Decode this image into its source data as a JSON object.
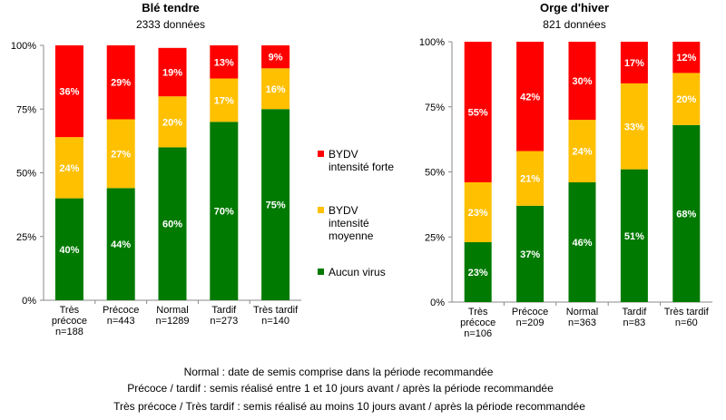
{
  "colors": {
    "forte": "#FF0000",
    "moyenne": "#FFC000",
    "aucun": "#007A00"
  },
  "legend": [
    {
      "key": "forte",
      "lines": [
        "BYDV",
        "intensité forte"
      ]
    },
    {
      "key": "moyenne",
      "lines": [
        "BYDV",
        "intensité",
        "moyenne"
      ]
    },
    {
      "key": "aucun",
      "lines": [
        "Aucun virus"
      ]
    }
  ],
  "chart_data": [
    {
      "type": "bar",
      "stacked": true,
      "title": "Blé tendre",
      "subtitle": "2333 données",
      "ylim": [
        0,
        100
      ],
      "yticks": [
        "0%",
        "25%",
        "50%",
        "75%",
        "100%"
      ],
      "categories": [
        [
          "Très",
          "précoce",
          "n=188"
        ],
        [
          "Précoce",
          "n=443"
        ],
        [
          "Normal",
          "n=1289"
        ],
        [
          "Tardif",
          "n=273"
        ],
        [
          "Très tardif",
          "n=140"
        ]
      ],
      "series": [
        {
          "key": "aucun",
          "name": "Aucun virus",
          "values": [
            40,
            44,
            60,
            70,
            75
          ]
        },
        {
          "key": "moyenne",
          "name": "BYDV intensité moyenne",
          "values": [
            24,
            27,
            20,
            17,
            16
          ]
        },
        {
          "key": "forte",
          "name": "BYDV intensité forte",
          "values": [
            36,
            29,
            19,
            13,
            9
          ]
        }
      ]
    },
    {
      "type": "bar",
      "stacked": true,
      "title": "Orge d'hiver",
      "subtitle": "821 données",
      "ylim": [
        0,
        100
      ],
      "yticks": [
        "0%",
        "25%",
        "50%",
        "75%",
        "100%"
      ],
      "categories": [
        [
          "Très",
          "précoce",
          "n=106"
        ],
        [
          "Précoce",
          "n=209"
        ],
        [
          "Normal",
          "n=363"
        ],
        [
          "Tardif",
          "n=83"
        ],
        [
          "Très tardif",
          "n=60"
        ]
      ],
      "series": [
        {
          "key": "aucun",
          "name": "Aucun virus",
          "values": [
            23,
            37,
            46,
            51,
            68
          ]
        },
        {
          "key": "moyenne",
          "name": "BYDV intensité moyenne",
          "values": [
            23,
            21,
            24,
            33,
            20
          ]
        },
        {
          "key": "forte",
          "name": "BYDV intensité forte",
          "values": [
            55,
            42,
            30,
            17,
            12
          ]
        }
      ]
    }
  ],
  "footnotes": [
    "Normal : date de semis comprise dans la période recommandée",
    "Précoce / tardif : semis réalisé entre 1 et 10 jours avant / après la période recommandée",
    "Très précoce / Très tardif : semis réalisé au moins 10 jours avant / après la période recommandée"
  ]
}
